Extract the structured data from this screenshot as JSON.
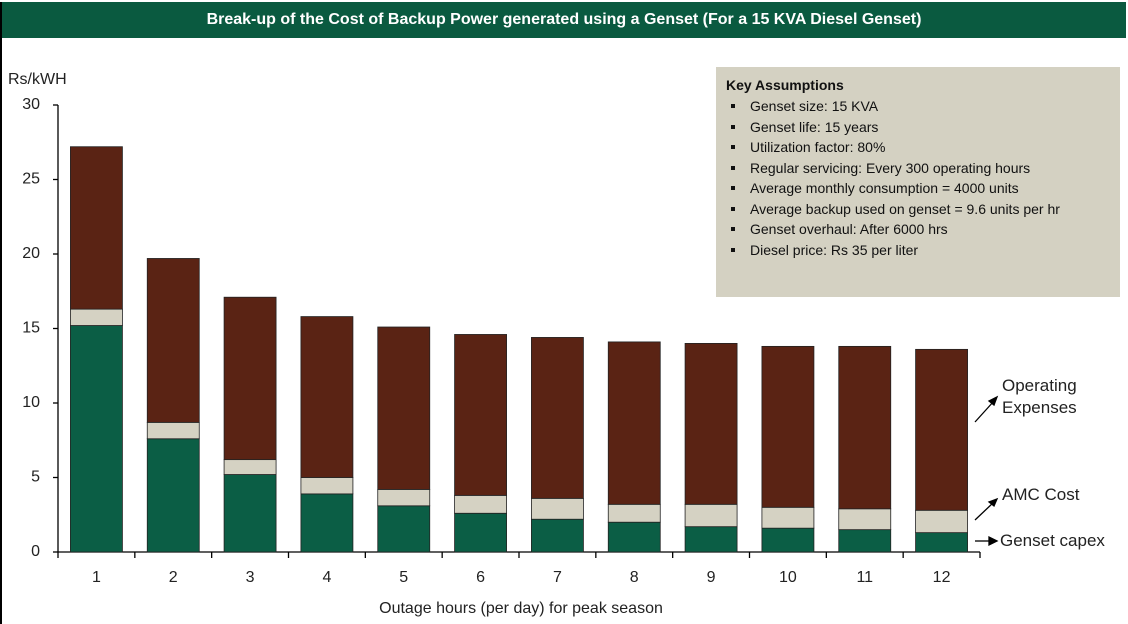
{
  "chart_data": {
    "type": "stacked_bar",
    "title": "Break-up of the Cost of Backup Power generated using a Genset (For a 15 KVA Diesel Genset)",
    "y_label": "Rs/kWH",
    "x_label": "Outage hours (per day) for peak season",
    "categories": [
      "1",
      "2",
      "3",
      "4",
      "5",
      "6",
      "7",
      "8",
      "9",
      "10",
      "11",
      "12"
    ],
    "series": [
      {
        "name": "Genset capex",
        "color": "#0b5e45",
        "values": [
          15.2,
          7.6,
          5.2,
          3.9,
          3.1,
          2.6,
          2.2,
          2.0,
          1.7,
          1.6,
          1.5,
          1.3
        ]
      },
      {
        "name": "AMC Cost",
        "color": "#d5d2c3",
        "values": [
          1.1,
          1.1,
          1.0,
          1.1,
          1.1,
          1.2,
          1.4,
          1.2,
          1.5,
          1.4,
          1.4,
          1.5
        ]
      },
      {
        "name": "Operating Expenses",
        "color": "#5a2314",
        "values": [
          10.9,
          11.0,
          10.9,
          10.8,
          10.9,
          10.8,
          10.8,
          10.9,
          10.8,
          10.8,
          10.9,
          10.8
        ]
      }
    ],
    "ylim": [
      0,
      30
    ],
    "yticks": [
      0,
      5,
      10,
      15,
      20,
      25,
      30
    ],
    "assumptions": {
      "title": "Key Assumptions",
      "items": [
        "Genset size: 15 KVA",
        "Genset life: 15 years",
        "Utilization factor: 80%",
        "Regular servicing: Every 300 operating hours",
        "Average monthly consumption = 4000 units",
        "Average backup used on genset = 9.6 units per hr",
        "Genset overhaul: After 6000 hrs",
        "Diesel price: Rs 35 per liter"
      ]
    }
  }
}
